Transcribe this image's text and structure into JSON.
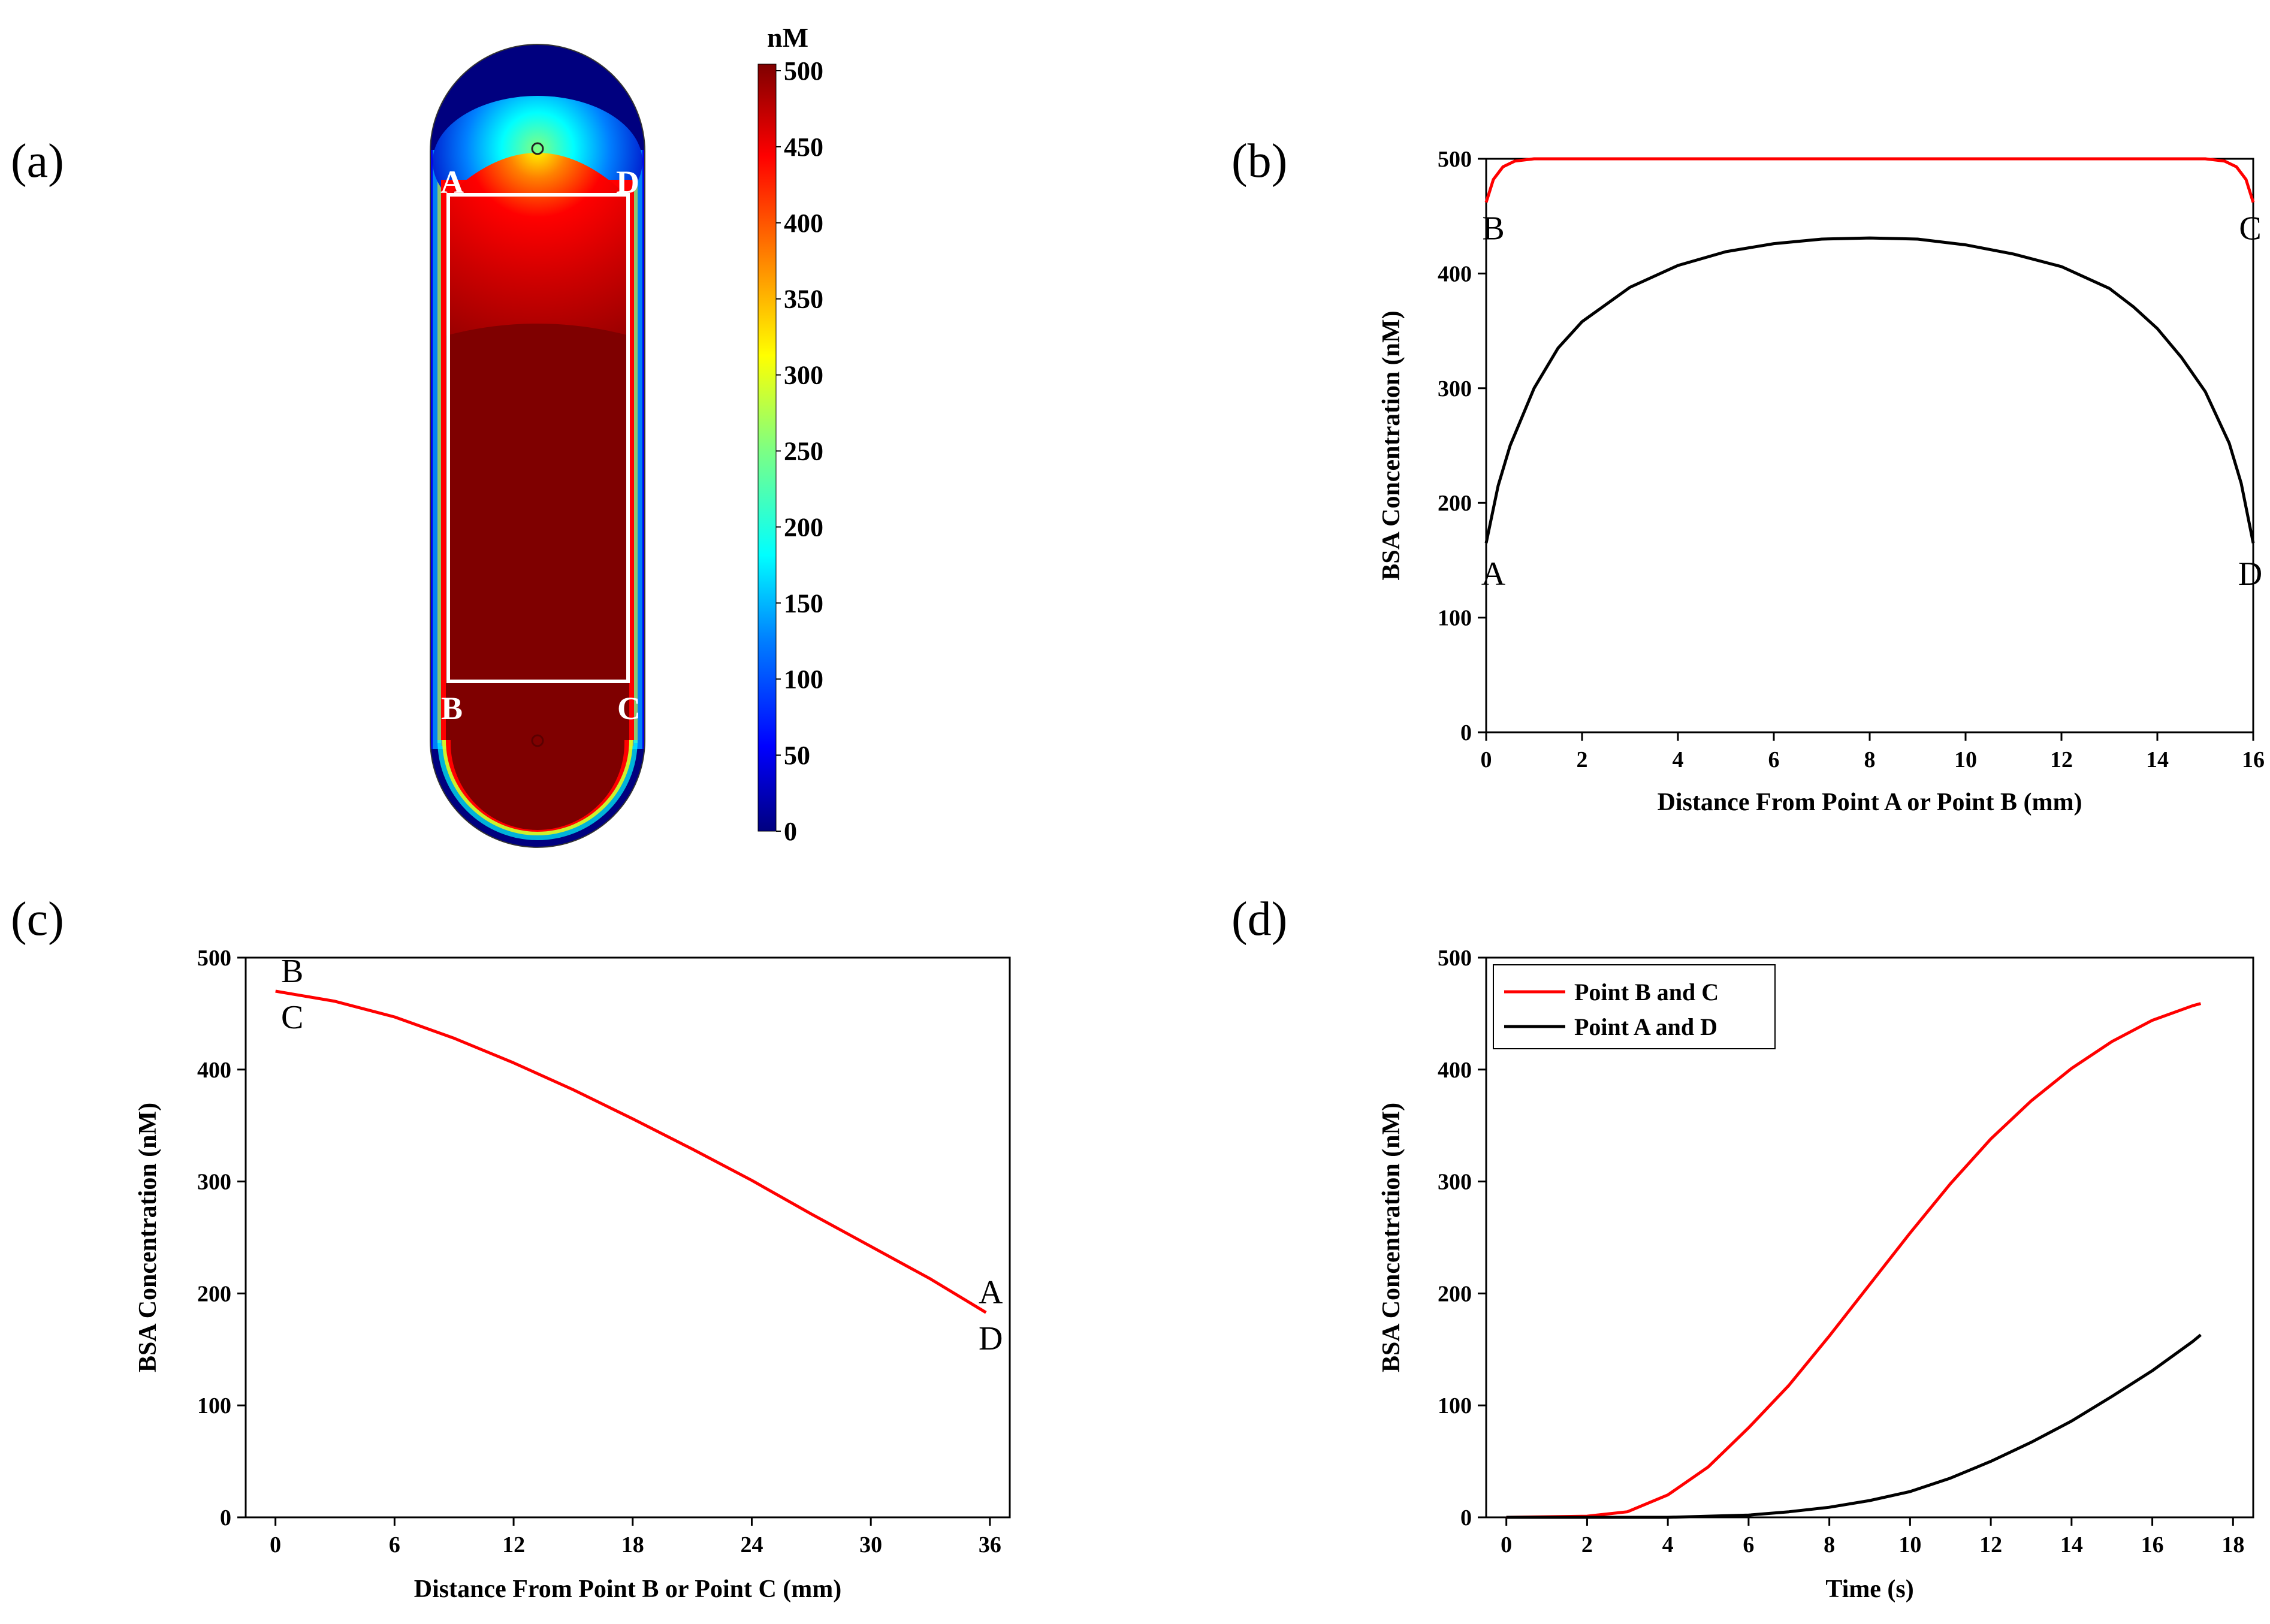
{
  "panel_labels": {
    "a": "(a)",
    "b": "(b)",
    "c": "(c)",
    "d": "(d)"
  },
  "heatmap": {
    "unit": "nM",
    "colorbar_ticks": [
      "500",
      "450",
      "400",
      "350",
      "300",
      "250",
      "200",
      "150",
      "100",
      "50",
      "0"
    ],
    "corner_labels": {
      "A": "A",
      "D": "D",
      "B": "B",
      "C": "C"
    },
    "colormap": [
      "#00007f",
      "#0000ff",
      "#0080ff",
      "#00ffff",
      "#80ff80",
      "#ffff00",
      "#ff8000",
      "#ff0000",
      "#7f0000"
    ]
  },
  "colors": {
    "red_series": "#ff0000",
    "black_series": "#000000"
  },
  "chart_data": [
    {
      "id": "b",
      "type": "line",
      "xlabel": "Distance From Point A or Point B (mm)",
      "ylabel": "BSA Concentration (nM)",
      "xlim": [
        0,
        16
      ],
      "ylim": [
        0,
        500
      ],
      "xticks": [
        "0",
        "2",
        "4",
        "6",
        "8",
        "10",
        "12",
        "14",
        "16"
      ],
      "yticks": [
        "0",
        "100",
        "200",
        "300",
        "400",
        "500"
      ],
      "series": [
        {
          "color": "#ff0000",
          "x": [
            0,
            0.15,
            0.35,
            0.6,
            1,
            2,
            4,
            8,
            12,
            14,
            15,
            15.4,
            15.65,
            15.85,
            16
          ],
          "y": [
            462,
            482,
            493,
            498,
            500,
            500,
            500,
            500,
            500,
            500,
            500,
            498,
            493,
            482,
            462
          ]
        },
        {
          "color": "#000000",
          "x": [
            0,
            0.25,
            0.5,
            1,
            1.5,
            2,
            3,
            4,
            5,
            6,
            7,
            8,
            9,
            10,
            11,
            12,
            13,
            13.5,
            14,
            14.5,
            15,
            15.5,
            15.75,
            16
          ],
          "y": [
            165,
            215,
            250,
            300,
            335,
            358,
            388,
            407,
            419,
            426,
            430,
            431,
            430,
            425,
            417,
            406,
            387,
            371,
            352,
            327,
            297,
            252,
            217,
            165
          ]
        }
      ],
      "annotations": [
        {
          "text": "B",
          "x": 0,
          "y": 462
        },
        {
          "text": "C",
          "x": 16,
          "y": 462
        },
        {
          "text": "A",
          "x": 0,
          "y": 165
        },
        {
          "text": "D",
          "x": 16,
          "y": 165
        }
      ]
    },
    {
      "id": "c",
      "type": "line",
      "xlabel": "Distance From Point B or Point C (mm)",
      "ylabel": "BSA Concentration (nM)",
      "xlim": [
        -1.5,
        37
      ],
      "ylim": [
        0,
        500
      ],
      "xticks": [
        "0",
        "6",
        "12",
        "18",
        "24",
        "30",
        "36"
      ],
      "xtick_values": [
        0,
        6,
        12,
        18,
        24,
        30,
        36
      ],
      "yticks": [
        "0",
        "100",
        "200",
        "300",
        "400",
        "500"
      ],
      "series": [
        {
          "color": "#ff0000",
          "x": [
            0,
            3,
            6,
            9,
            12,
            15,
            18,
            21,
            24,
            27,
            30,
            33,
            35.8
          ],
          "y": [
            470,
            461,
            447,
            428,
            406,
            382,
            356,
            329,
            301,
            271,
            242,
            213,
            183
          ]
        }
      ],
      "annotations": [
        {
          "text": "B",
          "x": 0,
          "y": 470,
          "pos": "above"
        },
        {
          "text": "C",
          "x": 0,
          "y": 470,
          "pos": "below"
        },
        {
          "text": "A",
          "x": 35.8,
          "y": 183,
          "pos": "above"
        },
        {
          "text": "D",
          "x": 35.8,
          "y": 183,
          "pos": "below"
        }
      ]
    },
    {
      "id": "d",
      "type": "line",
      "xlabel": "Time (s)",
      "ylabel": "BSA Concentration (nM)",
      "xlim": [
        -0.5,
        18.5
      ],
      "ylim": [
        0,
        500
      ],
      "xticks": [
        "0",
        "2",
        "4",
        "6",
        "8",
        "10",
        "12",
        "14",
        "16",
        "18"
      ],
      "xtick_values": [
        0,
        2,
        4,
        6,
        8,
        10,
        12,
        14,
        16,
        18
      ],
      "yticks": [
        "0",
        "100",
        "200",
        "300",
        "400",
        "500"
      ],
      "legend_position": "top-left",
      "series": [
        {
          "name": "Point B and C",
          "color": "#ff0000",
          "x": [
            0,
            2,
            3,
            4,
            5,
            6,
            7,
            8,
            9,
            10,
            11,
            12,
            13,
            14,
            15,
            16,
            17,
            17.2
          ],
          "y": [
            0,
            1,
            5,
            20,
            45,
            80,
            118,
            162,
            208,
            254,
            298,
            338,
            372,
            401,
            425,
            444,
            457,
            459
          ]
        },
        {
          "name": "Point A and D",
          "color": "#000000",
          "x": [
            0,
            4,
            5,
            6,
            7,
            8,
            9,
            10,
            11,
            12,
            13,
            14,
            15,
            16,
            17,
            17.2
          ],
          "y": [
            0,
            0,
            1,
            2,
            5,
            9,
            15,
            23,
            35,
            50,
            67,
            86,
            108,
            131,
            157,
            163
          ]
        }
      ]
    }
  ]
}
